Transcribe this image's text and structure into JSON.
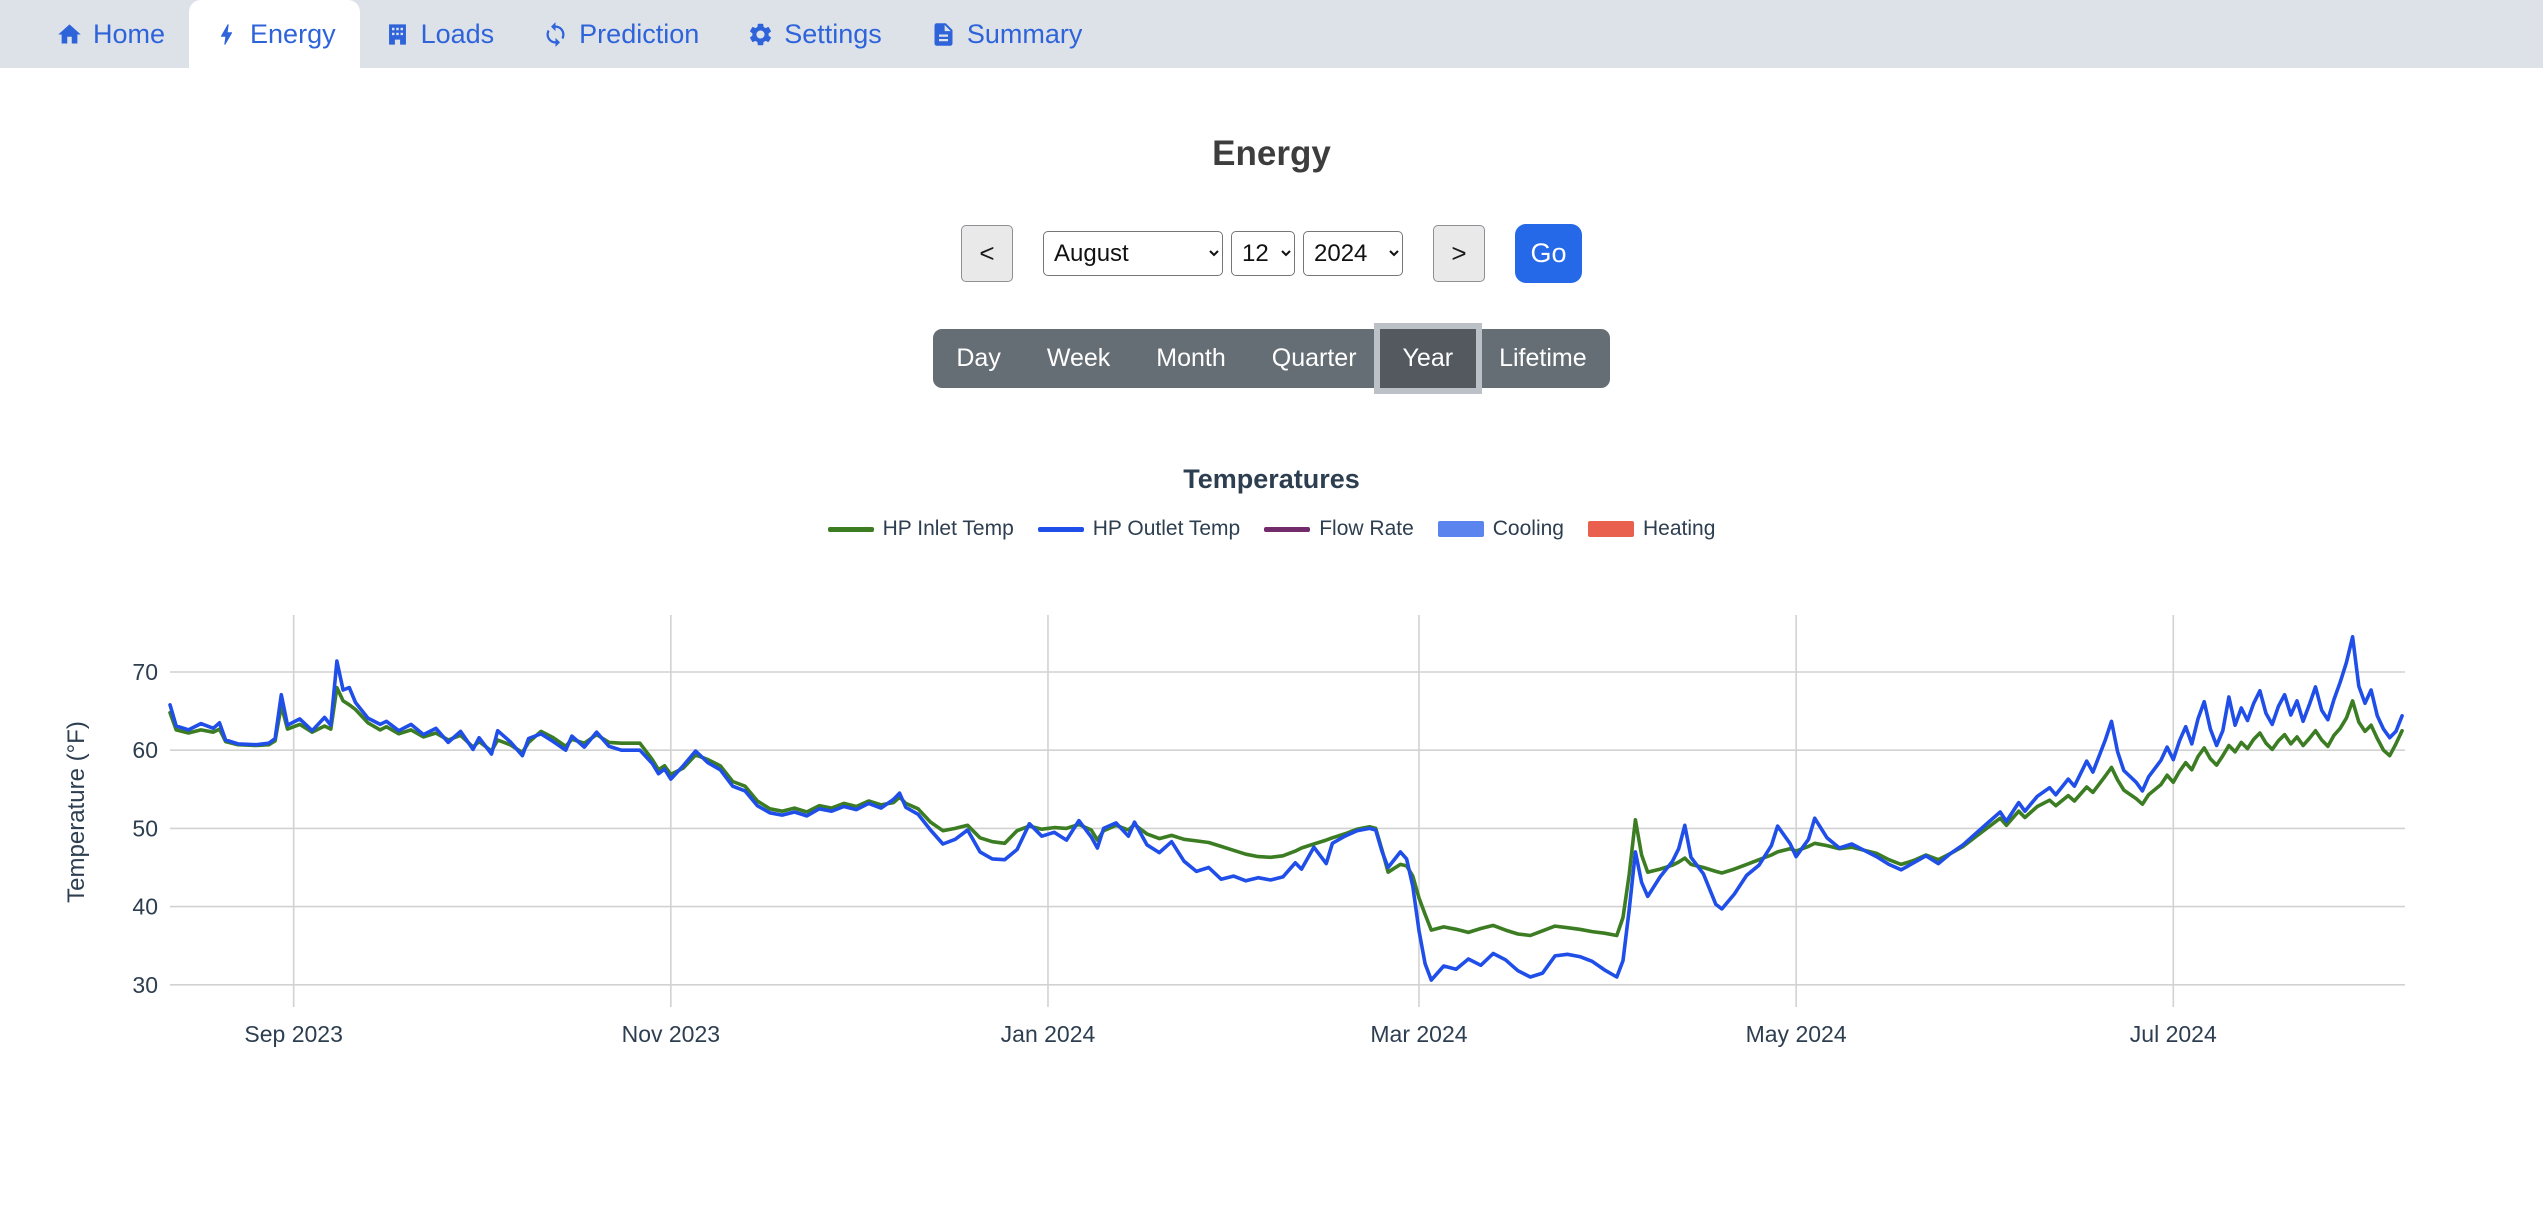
{
  "navbar": {
    "items": [
      {
        "label": "Home",
        "icon": "home-icon",
        "active": false
      },
      {
        "label": "Energy",
        "icon": "bolt-icon",
        "active": true
      },
      {
        "label": "Loads",
        "icon": "building-icon",
        "active": false
      },
      {
        "label": "Prediction",
        "icon": "refresh-icon",
        "active": false
      },
      {
        "label": "Settings",
        "icon": "gear-icon",
        "active": false
      },
      {
        "label": "Summary",
        "icon": "document-icon",
        "active": false
      }
    ],
    "link_color": "#2e63da",
    "background": "#dde2e9"
  },
  "page": {
    "title": "Energy"
  },
  "date_nav": {
    "prev_label": "<",
    "next_label": ">",
    "month": "August",
    "day": "12",
    "year": "2024",
    "go_label": "Go",
    "go_color": "#2569e8"
  },
  "period_selector": {
    "options": [
      "Day",
      "Week",
      "Month",
      "Quarter",
      "Year",
      "Lifetime"
    ],
    "selected": "Year",
    "bar_color": "#666e75",
    "active_color": "#53595f"
  },
  "chart_data": {
    "type": "line",
    "title": "Temperatures",
    "ylabel": "Temperature (°F)",
    "ylim": [
      27,
      76
    ],
    "y_ticks": [
      30,
      40,
      50,
      60,
      70
    ],
    "grid": true,
    "legend_position": "top",
    "x_start_date": "2023-08-12",
    "x_ticks": [
      {
        "day": 20,
        "label": "Sep 2023"
      },
      {
        "day": 81,
        "label": "Nov 2023"
      },
      {
        "day": 142,
        "label": "Jan 2024"
      },
      {
        "day": 202,
        "label": "Mar 2024"
      },
      {
        "day": 263,
        "label": "May 2024"
      },
      {
        "day": 324,
        "label": "Jul 2024"
      }
    ],
    "series": [
      {
        "name": "HP Inlet Temp",
        "color": "#3c7d23",
        "swatch": "line",
        "points_column": 1
      },
      {
        "name": "HP Outlet Temp",
        "color": "#1f4ee8",
        "swatch": "line",
        "points_column": 2
      },
      {
        "name": "Flow Rate",
        "color": "#722c6b",
        "swatch": "line",
        "points_column": null
      },
      {
        "name": "Cooling",
        "color": "#5b84ee",
        "swatch": "band",
        "points_column": null
      },
      {
        "name": "Heating",
        "color": "#e9604f",
        "swatch": "band",
        "points_column": null
      }
    ],
    "points_format": [
      "day_offset",
      "HP Inlet Temp (F)",
      "HP Outlet Temp (F)"
    ],
    "points": [
      [
        0,
        64.8,
        65.8
      ],
      [
        1,
        62.6,
        63.1
      ],
      [
        3,
        62.2,
        62.6
      ],
      [
        5,
        62.6,
        63.4
      ],
      [
        7,
        62.3,
        62.8
      ],
      [
        8,
        62.7,
        63.5
      ],
      [
        9,
        61.1,
        61.3
      ],
      [
        11,
        60.7,
        60.8
      ],
      [
        14,
        60.6,
        60.7
      ],
      [
        16,
        60.7,
        60.9
      ],
      [
        17,
        61.2,
        61.5
      ],
      [
        18,
        65.7,
        67.1
      ],
      [
        19,
        62.7,
        63.2
      ],
      [
        21,
        63.3,
        64.0
      ],
      [
        23,
        62.3,
        62.5
      ],
      [
        25,
        63.1,
        64.2
      ],
      [
        26,
        62.7,
        63.2
      ],
      [
        27,
        68.0,
        71.4
      ],
      [
        28,
        66.3,
        67.7
      ],
      [
        29,
        65.8,
        68.0
      ],
      [
        30,
        65.2,
        66.1
      ],
      [
        32,
        63.5,
        64.1
      ],
      [
        34,
        62.6,
        63.3
      ],
      [
        35,
        63.0,
        63.7
      ],
      [
        37,
        62.1,
        62.5
      ],
      [
        39,
        62.6,
        63.3
      ],
      [
        41,
        61.7,
        62.0
      ],
      [
        43,
        62.2,
        62.8
      ],
      [
        45,
        61.3,
        61.0
      ],
      [
        47,
        61.9,
        62.4
      ],
      [
        49,
        60.4,
        60.1
      ],
      [
        50,
        61.1,
        61.6
      ],
      [
        52,
        59.9,
        59.5
      ],
      [
        53,
        61.3,
        62.5
      ],
      [
        55,
        60.7,
        61.1
      ],
      [
        57,
        59.7,
        59.3
      ],
      [
        58,
        61.0,
        61.5
      ],
      [
        60,
        62.4,
        62.1
      ],
      [
        62,
        61.6,
        61.1
      ],
      [
        64,
        60.5,
        60.0
      ],
      [
        65,
        61.4,
        61.8
      ],
      [
        67,
        60.9,
        60.4
      ],
      [
        69,
        62.0,
        62.3
      ],
      [
        71,
        61.0,
        60.5
      ],
      [
        73,
        60.9,
        60.0
      ],
      [
        76,
        60.9,
        60.0
      ],
      [
        78,
        58.8,
        58.3
      ],
      [
        79,
        57.5,
        57.0
      ],
      [
        80,
        58.0,
        57.6
      ],
      [
        81,
        56.9,
        56.3
      ],
      [
        83,
        57.7,
        58.0
      ],
      [
        85,
        59.4,
        59.9
      ],
      [
        87,
        58.8,
        58.4
      ],
      [
        89,
        58.0,
        57.5
      ],
      [
        91,
        56.0,
        55.4
      ],
      [
        93,
        55.4,
        54.8
      ],
      [
        95,
        53.5,
        52.9
      ],
      [
        97,
        52.5,
        52.0
      ],
      [
        99,
        52.2,
        51.7
      ],
      [
        101,
        52.6,
        52.1
      ],
      [
        103,
        52.1,
        51.6
      ],
      [
        105,
        52.9,
        52.5
      ],
      [
        107,
        52.6,
        52.2
      ],
      [
        109,
        53.2,
        52.8
      ],
      [
        111,
        52.8,
        52.4
      ],
      [
        113,
        53.5,
        53.2
      ],
      [
        115,
        53.0,
        52.6
      ],
      [
        117,
        53.3,
        53.7
      ],
      [
        118,
        54.0,
        54.5
      ],
      [
        119,
        53.2,
        52.7
      ],
      [
        121,
        52.5,
        51.8
      ],
      [
        123,
        50.8,
        49.8
      ],
      [
        125,
        49.7,
        48.0
      ],
      [
        127,
        50.0,
        48.6
      ],
      [
        129,
        50.4,
        49.8
      ],
      [
        131,
        48.8,
        47.0
      ],
      [
        133,
        48.3,
        46.1
      ],
      [
        135,
        48.1,
        46.0
      ],
      [
        137,
        49.7,
        47.3
      ],
      [
        139,
        50.3,
        50.6
      ],
      [
        141,
        49.9,
        49.0
      ],
      [
        143,
        50.1,
        49.5
      ],
      [
        145,
        50.0,
        48.5
      ],
      [
        147,
        50.5,
        51.0
      ],
      [
        149,
        49.8,
        48.9
      ],
      [
        150,
        48.5,
        47.5
      ],
      [
        151,
        49.7,
        50.0
      ],
      [
        153,
        50.4,
        50.7
      ],
      [
        155,
        49.8,
        49.0
      ],
      [
        156,
        50.5,
        50.8
      ],
      [
        158,
        49.3,
        47.9
      ],
      [
        160,
        48.7,
        46.9
      ],
      [
        162,
        49.1,
        48.3
      ],
      [
        164,
        48.6,
        45.8
      ],
      [
        166,
        48.4,
        44.5
      ],
      [
        168,
        48.2,
        45.0
      ],
      [
        170,
        47.7,
        43.5
      ],
      [
        172,
        47.2,
        43.9
      ],
      [
        174,
        46.7,
        43.3
      ],
      [
        176,
        46.4,
        43.7
      ],
      [
        178,
        46.3,
        43.4
      ],
      [
        180,
        46.5,
        43.8
      ],
      [
        182,
        47.1,
        45.6
      ],
      [
        183,
        47.5,
        44.8
      ],
      [
        185,
        48.0,
        47.6
      ],
      [
        187,
        48.5,
        45.5
      ],
      [
        188,
        48.8,
        48.1
      ],
      [
        190,
        49.3,
        49.0
      ],
      [
        192,
        49.9,
        49.7
      ],
      [
        194,
        50.2,
        50.0
      ],
      [
        195,
        50.0,
        49.8
      ],
      [
        196,
        47.3,
        47.1
      ],
      [
        197,
        44.4,
        45.0
      ],
      [
        199,
        45.4,
        47.0
      ],
      [
        200,
        45.2,
        46.1
      ],
      [
        201,
        43.9,
        42.6
      ],
      [
        202,
        41.1,
        36.9
      ],
      [
        203,
        39.0,
        32.7
      ],
      [
        204,
        37.0,
        30.6
      ],
      [
        206,
        37.4,
        32.4
      ],
      [
        208,
        37.1,
        32.0
      ],
      [
        210,
        36.7,
        33.3
      ],
      [
        212,
        37.2,
        32.5
      ],
      [
        214,
        37.6,
        34.0
      ],
      [
        216,
        37.0,
        33.2
      ],
      [
        218,
        36.5,
        31.8
      ],
      [
        220,
        36.3,
        31.0
      ],
      [
        222,
        36.9,
        31.5
      ],
      [
        224,
        37.5,
        33.7
      ],
      [
        226,
        37.3,
        33.9
      ],
      [
        228,
        37.1,
        33.6
      ],
      [
        230,
        36.8,
        33.0
      ],
      [
        232,
        36.6,
        31.9
      ],
      [
        234,
        36.3,
        31.0
      ],
      [
        235,
        38.6,
        33.1
      ],
      [
        236,
        44.1,
        39.6
      ],
      [
        237,
        51.1,
        47.0
      ],
      [
        238,
        46.6,
        43.1
      ],
      [
        239,
        44.4,
        41.3
      ],
      [
        241,
        44.8,
        43.8
      ],
      [
        243,
        45.3,
        45.8
      ],
      [
        244,
        45.7,
        47.4
      ],
      [
        245,
        46.2,
        50.4
      ],
      [
        246,
        45.4,
        46.3
      ],
      [
        248,
        45.0,
        44.2
      ],
      [
        250,
        44.5,
        40.3
      ],
      [
        251,
        44.3,
        39.7
      ],
      [
        253,
        44.8,
        41.6
      ],
      [
        255,
        45.4,
        44.0
      ],
      [
        257,
        46.0,
        45.3
      ],
      [
        259,
        46.6,
        47.8
      ],
      [
        260,
        47.0,
        50.3
      ],
      [
        262,
        47.4,
        48.1
      ],
      [
        263,
        47.1,
        46.4
      ],
      [
        265,
        47.7,
        48.6
      ],
      [
        266,
        48.1,
        51.3
      ],
      [
        268,
        47.8,
        48.8
      ],
      [
        270,
        47.4,
        47.5
      ],
      [
        272,
        47.6,
        48.0
      ],
      [
        274,
        47.2,
        47.2
      ],
      [
        276,
        46.8,
        46.4
      ],
      [
        278,
        46.0,
        45.4
      ],
      [
        280,
        45.4,
        44.7
      ],
      [
        282,
        45.9,
        45.6
      ],
      [
        284,
        46.6,
        46.5
      ],
      [
        286,
        46.0,
        45.5
      ],
      [
        288,
        46.8,
        46.8
      ],
      [
        290,
        47.7,
        47.9
      ],
      [
        292,
        48.9,
        49.3
      ],
      [
        294,
        50.1,
        50.7
      ],
      [
        296,
        51.3,
        52.1
      ],
      [
        297,
        50.4,
        50.9
      ],
      [
        299,
        52.2,
        53.3
      ],
      [
        300,
        51.4,
        52.2
      ],
      [
        302,
        52.8,
        54.1
      ],
      [
        304,
        53.6,
        55.2
      ],
      [
        305,
        52.9,
        54.3
      ],
      [
        307,
        54.2,
        56.3
      ],
      [
        308,
        53.5,
        55.4
      ],
      [
        310,
        55.3,
        58.6
      ],
      [
        311,
        54.6,
        57.2
      ],
      [
        313,
        56.7,
        61.3
      ],
      [
        314,
        57.8,
        63.7
      ],
      [
        315,
        56.2,
        59.8
      ],
      [
        316,
        54.9,
        57.4
      ],
      [
        318,
        53.8,
        55.9
      ],
      [
        319,
        53.1,
        54.8
      ],
      [
        320,
        54.3,
        56.6
      ],
      [
        322,
        55.6,
        58.7
      ],
      [
        323,
        56.8,
        60.4
      ],
      [
        324,
        55.9,
        58.8
      ],
      [
        325,
        57.3,
        61.2
      ],
      [
        326,
        58.4,
        63.0
      ],
      [
        327,
        57.5,
        60.8
      ],
      [
        328,
        59.2,
        64.0
      ],
      [
        329,
        60.3,
        66.2
      ],
      [
        330,
        58.9,
        62.7
      ],
      [
        331,
        58.1,
        60.6
      ],
      [
        332,
        59.3,
        62.5
      ],
      [
        333,
        60.6,
        66.8
      ],
      [
        334,
        59.8,
        63.2
      ],
      [
        335,
        61.0,
        65.4
      ],
      [
        336,
        60.2,
        63.8
      ],
      [
        337,
        61.4,
        66.0
      ],
      [
        338,
        62.2,
        67.6
      ],
      [
        339,
        60.9,
        64.7
      ],
      [
        340,
        60.1,
        63.3
      ],
      [
        341,
        61.2,
        65.6
      ],
      [
        342,
        62.0,
        67.1
      ],
      [
        343,
        60.8,
        64.5
      ],
      [
        344,
        61.7,
        66.3
      ],
      [
        345,
        60.6,
        63.7
      ],
      [
        346,
        61.5,
        65.8
      ],
      [
        347,
        62.5,
        68.1
      ],
      [
        348,
        61.3,
        65.1
      ],
      [
        349,
        60.5,
        63.9
      ],
      [
        350,
        61.9,
        66.5
      ],
      [
        351,
        62.8,
        68.7
      ],
      [
        352,
        64.1,
        71.2
      ],
      [
        353,
        66.3,
        74.5
      ],
      [
        354,
        63.6,
        68.2
      ],
      [
        355,
        62.4,
        66.0
      ],
      [
        356,
        63.2,
        67.7
      ],
      [
        357,
        61.5,
        64.4
      ],
      [
        358,
        60.0,
        62.7
      ],
      [
        359,
        59.3,
        61.6
      ],
      [
        360,
        60.8,
        62.4
      ],
      [
        361,
        62.5,
        64.4
      ]
    ]
  }
}
